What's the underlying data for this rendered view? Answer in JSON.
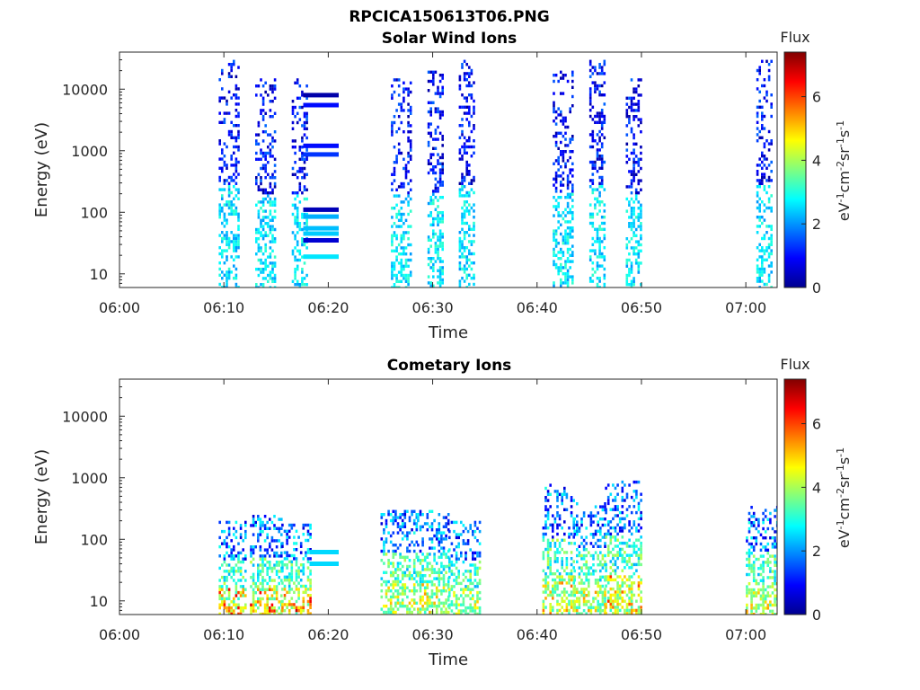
{
  "figure_title": "RPCICA150613T06.PNG",
  "colorbar_title": "Flux",
  "colorbar_unit_text": [
    "eV",
    "-1",
    "cm",
    "-2",
    "sr",
    "-1",
    "s",
    "-1"
  ],
  "chart_data": [
    {
      "type": "heatmap",
      "title": "Solar Wind Ions",
      "xlabel": "Time",
      "ylabel": "Energy (eV)",
      "y_scale": "log",
      "xlim": [
        "06:00",
        "07:03"
      ],
      "ylim": [
        6,
        40000
      ],
      "x_ticks": [
        "06:00",
        "06:10",
        "06:20",
        "06:30",
        "06:40",
        "06:50",
        "07:00"
      ],
      "y_ticks": [
        "10",
        "100",
        "1000",
        "10000"
      ],
      "colorbar": {
        "label": "Flux",
        "range": [
          0,
          7.4
        ],
        "ticks": [
          "0",
          "2",
          "4",
          "6"
        ],
        "colormap": "jet"
      },
      "bursts": [
        {
          "start": "06:09.5",
          "end": "06:11.5",
          "emin": 6,
          "emax": 30000,
          "flux": 1.5
        },
        {
          "start": "06:13.0",
          "end": "06:15.0",
          "emin": 6,
          "emax": 15000,
          "flux": 1.5
        },
        {
          "start": "06:16.5",
          "end": "06:18.0",
          "emin": 6,
          "emax": 15000,
          "flux": 1.5
        },
        {
          "start": "06:26.0",
          "end": "06:28.0",
          "emin": 6,
          "emax": 15000,
          "flux": 1.6
        },
        {
          "start": "06:29.5",
          "end": "06:31.0",
          "emin": 6,
          "emax": 20000,
          "flux": 1.6
        },
        {
          "start": "06:32.5",
          "end": "06:34.0",
          "emin": 6,
          "emax": 30000,
          "flux": 1.6
        },
        {
          "start": "06:41.5",
          "end": "06:43.5",
          "emin": 6,
          "emax": 20000,
          "flux": 1.6
        },
        {
          "start": "06:45.0",
          "end": "06:46.5",
          "emin": 6,
          "emax": 30000,
          "flux": 1.6
        },
        {
          "start": "06:48.5",
          "end": "06:50.0",
          "emin": 6,
          "emax": 15000,
          "flux": 1.6
        },
        {
          "start": "07:01.0",
          "end": "07:02.5",
          "emin": 6,
          "emax": 30000,
          "flux": 1.5
        }
      ],
      "bands": [
        {
          "start": "06:17.6",
          "end": "06:21.0",
          "energy": 8000,
          "flux": 0.3
        },
        {
          "start": "06:17.6",
          "end": "06:21.0",
          "energy": 5500,
          "flux": 1.0
        },
        {
          "start": "06:17.6",
          "end": "06:21.0",
          "energy": 1200,
          "flux": 1.0
        },
        {
          "start": "06:17.6",
          "end": "06:21.0",
          "energy": 870,
          "flux": 1.3
        },
        {
          "start": "06:17.6",
          "end": "06:21.0",
          "energy": 110,
          "flux": 0.4
        },
        {
          "start": "06:17.6",
          "end": "06:21.0",
          "energy": 85,
          "flux": 2.2
        },
        {
          "start": "06:17.6",
          "end": "06:21.0",
          "energy": 55,
          "flux": 2.3
        },
        {
          "start": "06:17.6",
          "end": "06:21.0",
          "energy": 45,
          "flux": 2.4
        },
        {
          "start": "06:17.6",
          "end": "06:21.0",
          "energy": 35,
          "flux": 0.6
        },
        {
          "start": "06:17.6",
          "end": "06:21.0",
          "energy": 19,
          "flux": 2.6
        }
      ]
    },
    {
      "type": "heatmap",
      "title": "Cometary Ions",
      "xlabel": "Time",
      "ylabel": "Energy (eV)",
      "y_scale": "log",
      "xlim": [
        "06:00",
        "07:03"
      ],
      "ylim": [
        6,
        40000
      ],
      "x_ticks": [
        "06:00",
        "06:10",
        "06:20",
        "06:30",
        "06:40",
        "06:50",
        "07:00"
      ],
      "y_ticks": [
        "10",
        "100",
        "1000",
        "10000"
      ],
      "colorbar": {
        "label": "Flux",
        "range": [
          0,
          7.4
        ],
        "ticks": [
          "0",
          "2",
          "4",
          "6"
        ],
        "colormap": "jet"
      },
      "bursts": [
        {
          "start": "06:09.5",
          "end": "06:12.0",
          "emin": 6,
          "emax": 200,
          "flux": 3.0,
          "peak_flux": 5.5
        },
        {
          "start": "06:12.5",
          "end": "06:15.5",
          "emin": 6,
          "emax": 250,
          "flux": 3.0,
          "peak_flux": 5.5
        },
        {
          "start": "06:15.5",
          "end": "06:18.2",
          "emin": 6,
          "emax": 180,
          "flux": 3.0,
          "peak_flux": 6.0
        },
        {
          "start": "06:25.0",
          "end": "06:28.5",
          "emin": 6,
          "emax": 300,
          "flux": 3.0,
          "peak_flux": 4.0
        },
        {
          "start": "06:28.5",
          "end": "06:31.5",
          "emin": 6,
          "emax": 300,
          "flux": 3.0,
          "peak_flux": 4.2
        },
        {
          "start": "06:31.5",
          "end": "06:34.5",
          "emin": 6,
          "emax": 200,
          "flux": 3.0,
          "peak_flux": 3.8
        },
        {
          "start": "06:40.5",
          "end": "06:43.5",
          "emin": 6,
          "emax": 800,
          "flux": 3.0,
          "peak_flux": 4.5
        },
        {
          "start": "06:43.5",
          "end": "06:46.5",
          "emin": 6,
          "emax": 400,
          "flux": 3.0,
          "peak_flux": 4.2
        },
        {
          "start": "06:46.5",
          "end": "06:50.0",
          "emin": 6,
          "emax": 900,
          "flux": 3.0,
          "peak_flux": 5.0
        },
        {
          "start": "07:00.0",
          "end": "07:03.0",
          "emin": 6,
          "emax": 350,
          "flux": 3.0,
          "peak_flux": 4.3
        }
      ],
      "bands": [
        {
          "start": "06:18.2",
          "end": "06:21.0",
          "energy": 62,
          "flux": 2.5
        },
        {
          "start": "06:18.2",
          "end": "06:21.0",
          "energy": 40,
          "flux": 2.5
        }
      ]
    }
  ]
}
